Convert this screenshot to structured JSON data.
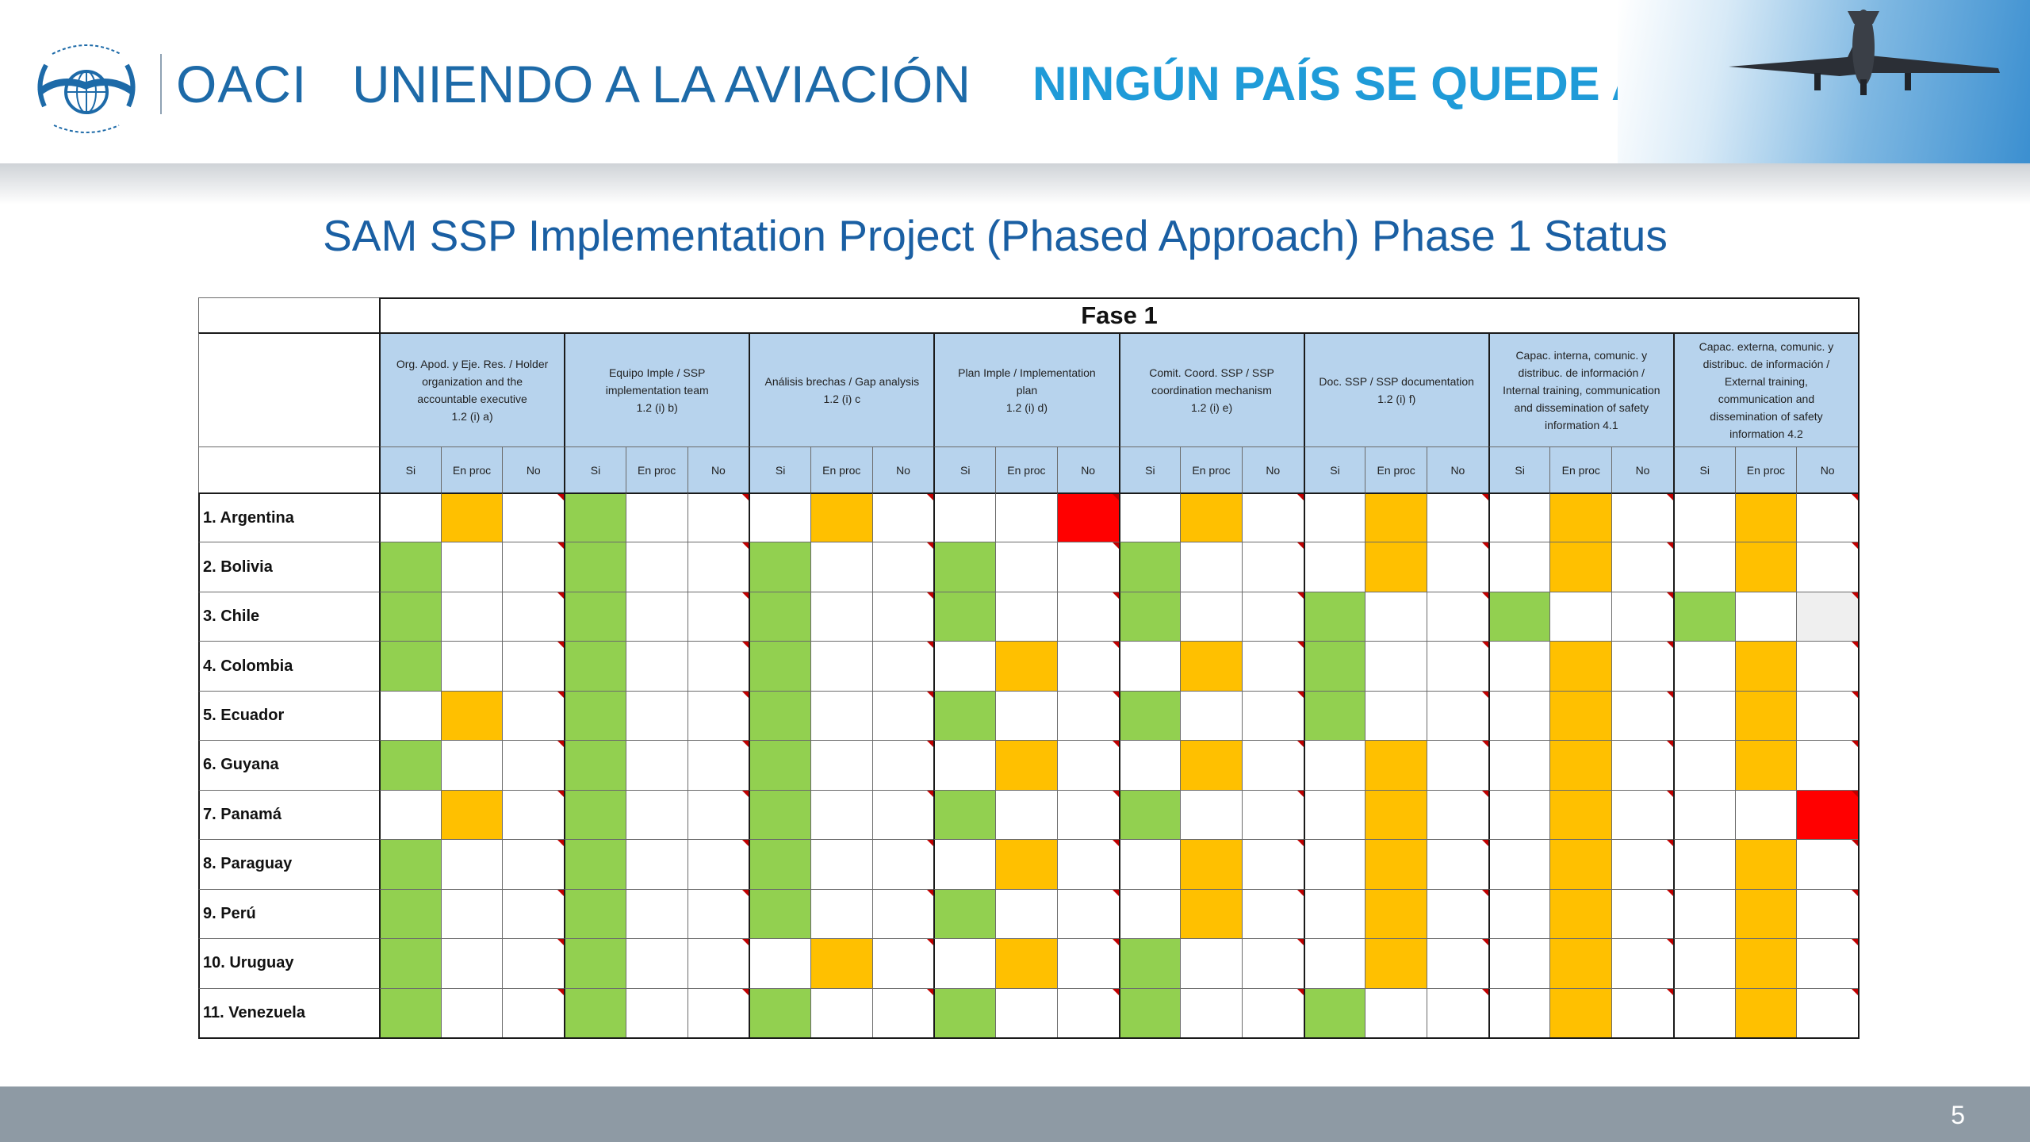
{
  "header": {
    "logo_text": "OACI",
    "tagline": "UNIENDO A LA AVIACIÓN",
    "slogan": "NINGÚN PAÍS SE QUEDE ATRÁS",
    "emblem_icon": "icao-emblem-icon",
    "photo_icon": "airplane-photo-icon"
  },
  "title": "SAM SSP Implementation Project (Phased Approach) Phase 1 Status",
  "table": {
    "phase": "Fase 1",
    "status_labels": [
      "Si",
      "En proc",
      "No"
    ],
    "groups": [
      {
        "lines": [
          "Org. Apod. y Eje. Res. / Holder",
          "organization and the",
          "accountable executive",
          "1.2 (i) a)"
        ]
      },
      {
        "lines": [
          "Equipo Imple / SSP",
          "implementation team",
          "1.2 (i) b)"
        ]
      },
      {
        "lines": [
          "Análisis brechas / Gap analysis",
          "1.2 (i) c"
        ]
      },
      {
        "lines": [
          "Plan Imple / Implementation",
          "plan",
          "1.2 (i) d)"
        ]
      },
      {
        "lines": [
          "Comit. Coord. SSP / SSP",
          "coordination mechanism",
          "1.2 (i) e)"
        ]
      },
      {
        "lines": [
          "Doc. SSP / SSP documentation",
          "1.2 (i) f)"
        ]
      },
      {
        "lines": [
          "Capac. interna, comunic. y",
          "distribuc. de información /",
          "Internal training, communication",
          "and dissemination of safety",
          "information  4.1"
        ]
      },
      {
        "lines": [
          "Capac. externa, comunic. y",
          "distribuc. de información /",
          "External training,",
          "communication and",
          "dissemination of safety",
          "information  4.2"
        ]
      }
    ],
    "legend_colors": {
      "g": "#92d050",
      "o": "#ffc000",
      "r": "#ff0000",
      "x": "#efefef"
    },
    "rows": [
      {
        "country": "1. Argentina",
        "cells": "-o- g-- -o- --r -o- -o- -o- -o-"
      },
      {
        "country": "2. Bolivia",
        "cells": "g-- g-- g-- g-- g-- -o- -o- -o-"
      },
      {
        "country": "3. Chile",
        "cells": "g-- g-- g-- g-- g-- g-- g-- g-x"
      },
      {
        "country": "4. Colombia",
        "cells": "g-- g-- g-- -o- -o- g-- -o- -o-"
      },
      {
        "country": "5. Ecuador",
        "cells": "-o- g-- g-- g-- g-- g-- -o- -o-"
      },
      {
        "country": "6. Guyana",
        "cells": "g-- g-- g-- -o- -o- -o- -o- -o-"
      },
      {
        "country": "7. Panamá",
        "cells": "-o- g-- g-- g-- g-- -o- -o- --r"
      },
      {
        "country": "8. Paraguay",
        "cells": "g-- g-- g-- -o- -o- -o- -o- -o-"
      },
      {
        "country": "9. Perú",
        "cells": "g-- g-- g-- g-- -o- -o- -o- -o-"
      },
      {
        "country": "10. Uruguay",
        "cells": "g-- g-- -o- -o- g-- -o- -o- -o-"
      },
      {
        "country": "11. Venezuela",
        "cells": "g-- g-- g-- g-- g-- g-- -o- -o-"
      }
    ]
  },
  "footer": {
    "page_number": "5"
  }
}
